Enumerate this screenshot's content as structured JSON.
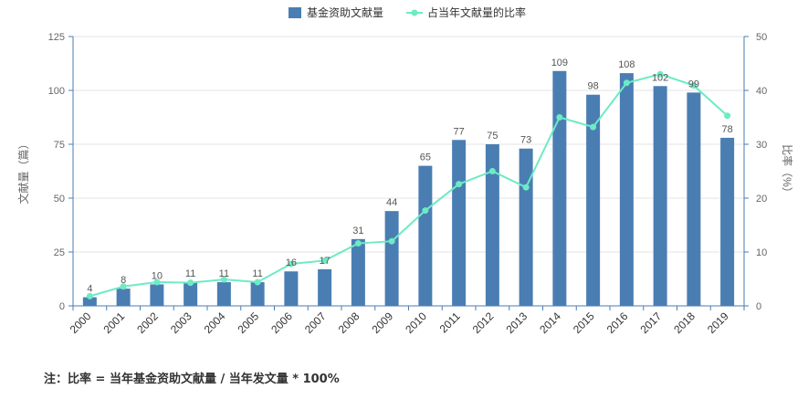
{
  "chart_data": {
    "type": "bar",
    "categories": [
      "2000",
      "2001",
      "2002",
      "2003",
      "2004",
      "2005",
      "2006",
      "2007",
      "2008",
      "2009",
      "2010",
      "2011",
      "2012",
      "2013",
      "2014",
      "2015",
      "2016",
      "2017",
      "2018",
      "2019"
    ],
    "series": [
      {
        "name": "基金资助文献量",
        "type": "bar",
        "axis": "left",
        "color": "#4a7eb3",
        "values": [
          4,
          8,
          10,
          11,
          11,
          11,
          16,
          17,
          31,
          44,
          65,
          77,
          75,
          73,
          109,
          98,
          108,
          102,
          99,
          78
        ]
      },
      {
        "name": "占当年文献量的比率",
        "type": "line",
        "axis": "right",
        "color": "#6cebc4",
        "values": [
          1.8,
          3.6,
          4.4,
          4.3,
          4.9,
          4.4,
          7.8,
          8.4,
          11.6,
          12.0,
          17.7,
          22.6,
          25.0,
          22.0,
          35.0,
          33.2,
          41.4,
          43.0,
          40.9,
          35.3
        ]
      }
    ],
    "ylabel": "文献量（篇）",
    "ylabel_right": "比率（%）",
    "ylim": [
      0,
      125
    ],
    "ylim_right": [
      0,
      50
    ],
    "yticks": [
      0,
      25,
      50,
      75,
      100,
      125
    ],
    "yticks_right": [
      0,
      10,
      20,
      30,
      40,
      50
    ],
    "legend_position": "top-center",
    "grid": true
  },
  "note": "注：比率 = 当年基金资助文献量 / 当年发文量 * 100%"
}
